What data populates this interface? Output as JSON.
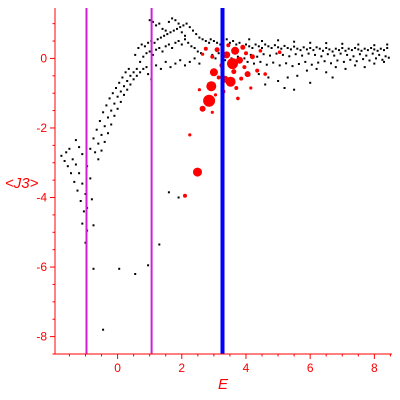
{
  "chart_data": {
    "type": "scatter",
    "title": "",
    "xlabel": "E",
    "ylabel": "<J3>",
    "xlim": [
      -1.95,
      8.55
    ],
    "ylim": [
      -8.5,
      1.45
    ],
    "xticks": [
      0,
      2,
      4,
      6,
      8
    ],
    "yticks": [
      -8,
      -6,
      -4,
      -2,
      0
    ],
    "grid": false,
    "legend": "none",
    "colors": {
      "axes": "#ff0000",
      "band_points": "#000000",
      "highlight_points": "#ff0000",
      "magenta_lines": "#d21ed2",
      "blue_line": "#0000ff"
    },
    "vertical_lines": [
      {
        "x": -0.97,
        "color": "#d21ed2"
      },
      {
        "x": 1.06,
        "color": "#d21ed2"
      },
      {
        "x": 3.27,
        "color": "#0000ff"
      }
    ],
    "highlight_points": [
      {
        "x": 2.49,
        "y": -3.27,
        "size": 4.5
      },
      {
        "x": 2.85,
        "y": -1.22,
        "size": 6
      },
      {
        "x": 2.92,
        "y": -0.8,
        "size": 5
      },
      {
        "x": 3.0,
        "y": -0.4,
        "size": 4
      },
      {
        "x": 2.65,
        "y": -1.45,
        "size": 3
      },
      {
        "x": 3.35,
        "y": -0.6,
        "size": 3.5
      },
      {
        "x": 3.52,
        "y": -0.67,
        "size": 5
      },
      {
        "x": 3.58,
        "y": -0.15,
        "size": 5.5
      },
      {
        "x": 3.66,
        "y": 0.22,
        "size": 4
      },
      {
        "x": 3.4,
        "y": 0.1,
        "size": 3.5
      },
      {
        "x": 3.8,
        "y": -0.05,
        "size": 3.5
      },
      {
        "x": 4.05,
        "y": -0.45,
        "size": 3
      },
      {
        "x": 3.25,
        "y": -0.2,
        "size": 2.5
      },
      {
        "x": 3.1,
        "y": 0.25,
        "size": 2.5
      },
      {
        "x": 4.2,
        "y": 0.05,
        "size": 2.5
      },
      {
        "x": 3.9,
        "y": 0.32,
        "size": 2.5
      },
      {
        "x": 3.95,
        "y": -0.25,
        "size": 2
      },
      {
        "x": 4.35,
        "y": -0.35,
        "size": 2
      },
      {
        "x": 4.6,
        "y": -0.45,
        "size": 1.8
      },
      {
        "x": 3.7,
        "y": -0.85,
        "size": 2
      },
      {
        "x": 3.75,
        "y": -1.15,
        "size": 1.8
      },
      {
        "x": 3.15,
        "y": -0.55,
        "size": 2
      },
      {
        "x": 2.75,
        "y": 0.28,
        "size": 2
      },
      {
        "x": 2.95,
        "y": 0.05,
        "size": 2
      },
      {
        "x": 2.25,
        "y": -2.2,
        "size": 1.6
      },
      {
        "x": 2.1,
        "y": -3.95,
        "size": 2
      },
      {
        "x": 2.95,
        "y": -1.55,
        "size": 1.6
      },
      {
        "x": 3.45,
        "y": 0.38,
        "size": 2
      },
      {
        "x": 4.45,
        "y": 0.22,
        "size": 1.8
      },
      {
        "x": 5.05,
        "y": 0.18,
        "size": 1.8
      },
      {
        "x": 3.3,
        "y": -0.95,
        "size": 2
      },
      {
        "x": 2.55,
        "y": -0.9,
        "size": 1.6
      },
      {
        "x": 3.05,
        "y": -1.05,
        "size": 1.6
      },
      {
        "x": 4.15,
        "y": -0.85,
        "size": 1.6
      },
      {
        "x": 2.65,
        "y": 0.12,
        "size": 1.6
      },
      {
        "x": 3.62,
        "y": -0.38,
        "size": 2.5
      },
      {
        "x": 3.85,
        "y": -0.58,
        "size": 2
      },
      {
        "x": 4.0,
        "y": 0.15,
        "size": 2
      }
    ],
    "band_points": [
      {
        "x": -1.75,
        "y": -2.8
      },
      {
        "x": -1.65,
        "y": -2.95
      },
      {
        "x": -1.55,
        "y": -3.1
      },
      {
        "x": -1.45,
        "y": -3.3
      },
      {
        "x": -1.35,
        "y": -3.55
      },
      {
        "x": -1.25,
        "y": -3.8
      },
      {
        "x": -1.15,
        "y": -4.1
      },
      {
        "x": -1.05,
        "y": -4.4
      },
      {
        "x": -1.6,
        "y": -2.7
      },
      {
        "x": -1.5,
        "y": -2.6
      },
      {
        "x": -1.4,
        "y": -2.9
      },
      {
        "x": -1.3,
        "y": -3.05
      },
      {
        "x": -1.2,
        "y": -3.3
      },
      {
        "x": -1.1,
        "y": -3.6
      },
      {
        "x": -1.0,
        "y": -3.9
      },
      {
        "x": -0.95,
        "y": -4.3
      },
      {
        "x": -1.3,
        "y": -2.35
      },
      {
        "x": -1.2,
        "y": -2.55
      },
      {
        "x": -1.1,
        "y": -2.75
      },
      {
        "x": -0.95,
        "y": -3.1
      },
      {
        "x": -0.85,
        "y": -3.45
      },
      {
        "x": -0.8,
        "y": -4.05
      },
      {
        "x": -0.75,
        "y": -4.8
      },
      {
        "x": -0.95,
        "y": -4.95
      },
      {
        "x": -1.1,
        "y": -4.75
      },
      {
        "x": -0.85,
        "y": -2.6
      },
      {
        "x": -0.75,
        "y": -2.3
      },
      {
        "x": -0.65,
        "y": -2.05
      },
      {
        "x": -0.55,
        "y": -1.8
      },
      {
        "x": -0.45,
        "y": -1.55
      },
      {
        "x": -0.35,
        "y": -1.35
      },
      {
        "x": -0.25,
        "y": -1.15
      },
      {
        "x": -0.15,
        "y": -1.0
      },
      {
        "x": -0.05,
        "y": -0.85
      },
      {
        "x": 0.05,
        "y": -0.7
      },
      {
        "x": 0.15,
        "y": -0.55
      },
      {
        "x": 0.25,
        "y": -0.4
      },
      {
        "x": 0.35,
        "y": -0.3
      },
      {
        "x": -0.7,
        "y": -2.7
      },
      {
        "x": -0.6,
        "y": -2.45
      },
      {
        "x": -0.5,
        "y": -2.2
      },
      {
        "x": -0.4,
        "y": -1.95
      },
      {
        "x": -0.3,
        "y": -1.7
      },
      {
        "x": -0.2,
        "y": -1.5
      },
      {
        "x": -0.1,
        "y": -1.3
      },
      {
        "x": 0.0,
        "y": -1.1
      },
      {
        "x": 0.1,
        "y": -0.95
      },
      {
        "x": 0.2,
        "y": -0.8
      },
      {
        "x": 0.3,
        "y": -0.65
      },
      {
        "x": 0.4,
        "y": -0.5
      },
      {
        "x": 0.5,
        "y": -0.4
      },
      {
        "x": 0.6,
        "y": -0.3
      },
      {
        "x": -0.6,
        "y": -2.9
      },
      {
        "x": -0.5,
        "y": -2.65
      },
      {
        "x": -0.4,
        "y": -2.4
      },
      {
        "x": -0.3,
        "y": -2.15
      },
      {
        "x": -0.2,
        "y": -1.9
      },
      {
        "x": -0.1,
        "y": -1.65
      },
      {
        "x": 0.0,
        "y": -1.45
      },
      {
        "x": 0.1,
        "y": -1.25
      },
      {
        "x": 0.2,
        "y": -1.05
      },
      {
        "x": 0.3,
        "y": -0.9
      },
      {
        "x": 0.4,
        "y": -0.75
      },
      {
        "x": 0.5,
        "y": -0.6
      },
      {
        "x": 0.6,
        "y": -0.5
      },
      {
        "x": 0.7,
        "y": -0.4
      },
      {
        "x": 0.8,
        "y": -0.3
      },
      {
        "x": 0.9,
        "y": -0.25
      },
      {
        "x": 0.55,
        "y": 0.1
      },
      {
        "x": 0.65,
        "y": 0.3
      },
      {
        "x": 0.75,
        "y": 0.4
      },
      {
        "x": 0.85,
        "y": 0.35
      },
      {
        "x": 0.95,
        "y": 0.45
      },
      {
        "x": 1.05,
        "y": 0.5
      },
      {
        "x": 1.15,
        "y": 0.45
      },
      {
        "x": 1.25,
        "y": 0.55
      },
      {
        "x": 1.35,
        "y": 0.6
      },
      {
        "x": 1.45,
        "y": 0.65
      },
      {
        "x": 1.55,
        "y": 0.7
      },
      {
        "x": 1.65,
        "y": 0.75
      },
      {
        "x": 1.75,
        "y": 0.8
      },
      {
        "x": 1.85,
        "y": 0.85
      },
      {
        "x": 1.95,
        "y": 0.9
      },
      {
        "x": 2.05,
        "y": 0.95
      },
      {
        "x": 2.15,
        "y": 1.0
      },
      {
        "x": 2.25,
        "y": 0.9
      },
      {
        "x": 2.35,
        "y": 0.8
      },
      {
        "x": 2.45,
        "y": 0.7
      },
      {
        "x": 2.55,
        "y": 0.6
      },
      {
        "x": 2.65,
        "y": 0.55
      },
      {
        "x": 2.75,
        "y": 0.5
      },
      {
        "x": 2.85,
        "y": 0.45
      },
      {
        "x": 1.0,
        "y": 1.1
      },
      {
        "x": 1.1,
        "y": 1.05
      },
      {
        "x": 1.2,
        "y": 0.95
      },
      {
        "x": 1.3,
        "y": 1.0
      },
      {
        "x": 1.4,
        "y": 0.85
      },
      {
        "x": 1.5,
        "y": 0.8
      },
      {
        "x": 1.6,
        "y": 1.05
      },
      {
        "x": 1.7,
        "y": 1.15
      },
      {
        "x": 1.8,
        "y": 1.1
      },
      {
        "x": 1.9,
        "y": 1.0
      },
      {
        "x": 2.0,
        "y": 0.75
      },
      {
        "x": 2.1,
        "y": 0.65
      },
      {
        "x": 0.7,
        "y": -0.1
      },
      {
        "x": 0.8,
        "y": 0.05
      },
      {
        "x": 0.9,
        "y": 0.15
      },
      {
        "x": 1.0,
        "y": 0.2
      },
      {
        "x": 1.1,
        "y": 0.1
      },
      {
        "x": 1.2,
        "y": 0.25
      },
      {
        "x": 1.3,
        "y": 0.3
      },
      {
        "x": 1.4,
        "y": 0.2
      },
      {
        "x": 1.5,
        "y": 0.35
      },
      {
        "x": 1.6,
        "y": 0.4
      },
      {
        "x": 1.7,
        "y": 0.3
      },
      {
        "x": 1.8,
        "y": 0.45
      },
      {
        "x": 1.9,
        "y": 0.5
      },
      {
        "x": 2.0,
        "y": 0.4
      },
      {
        "x": 2.1,
        "y": 0.55
      },
      {
        "x": 2.2,
        "y": 0.45
      },
      {
        "x": 2.3,
        "y": 0.35
      },
      {
        "x": 2.4,
        "y": 0.3
      },
      {
        "x": 2.5,
        "y": 0.2
      },
      {
        "x": 2.6,
        "y": 0.15
      },
      {
        "x": 1.2,
        "y": -0.2
      },
      {
        "x": 1.35,
        "y": -0.3
      },
      {
        "x": 1.5,
        "y": -0.1
      },
      {
        "x": 1.65,
        "y": -0.25
      },
      {
        "x": 1.8,
        "y": -0.15
      },
      {
        "x": 1.95,
        "y": -0.05
      },
      {
        "x": 2.1,
        "y": -0.2
      },
      {
        "x": 2.25,
        "y": -0.1
      },
      {
        "x": 2.4,
        "y": 0.0
      },
      {
        "x": 2.55,
        "y": -0.15
      },
      {
        "x": 0.95,
        "y": -0.45
      },
      {
        "x": 1.05,
        "y": -0.6
      },
      {
        "x": 2.9,
        "y": 0.55
      },
      {
        "x": 3.0,
        "y": 0.5
      },
      {
        "x": 3.1,
        "y": 0.45
      },
      {
        "x": 3.2,
        "y": 0.4
      },
      {
        "x": 3.3,
        "y": 0.5
      },
      {
        "x": 3.4,
        "y": 0.55
      },
      {
        "x": 3.5,
        "y": 0.45
      },
      {
        "x": 3.6,
        "y": 0.5
      },
      {
        "x": 3.7,
        "y": 0.4
      },
      {
        "x": 3.8,
        "y": 0.45
      },
      {
        "x": 3.9,
        "y": 0.35
      },
      {
        "x": 4.0,
        "y": 0.4
      },
      {
        "x": 2.95,
        "y": 0.1
      },
      {
        "x": 3.05,
        "y": 0.0
      },
      {
        "x": 3.15,
        "y": 0.15
      },
      {
        "x": 3.25,
        "y": 0.05
      },
      {
        "x": 3.35,
        "y": -0.05
      },
      {
        "x": 3.45,
        "y": 0.1
      },
      {
        "x": 3.55,
        "y": 0.0
      },
      {
        "x": 3.65,
        "y": -0.1
      },
      {
        "x": 3.75,
        "y": 0.05
      },
      {
        "x": 3.85,
        "y": -0.05
      },
      {
        "x": 3.95,
        "y": 0.0
      },
      {
        "x": 4.05,
        "y": -0.1
      },
      {
        "x": 4.1,
        "y": 0.35
      },
      {
        "x": 4.2,
        "y": 0.3
      },
      {
        "x": 4.3,
        "y": 0.4
      },
      {
        "x": 4.4,
        "y": 0.35
      },
      {
        "x": 4.5,
        "y": 0.3
      },
      {
        "x": 4.6,
        "y": 0.4
      },
      {
        "x": 4.7,
        "y": 0.35
      },
      {
        "x": 4.8,
        "y": 0.3
      },
      {
        "x": 4.9,
        "y": 0.38
      },
      {
        "x": 5.0,
        "y": 0.32
      },
      {
        "x": 5.1,
        "y": 0.28
      },
      {
        "x": 5.2,
        "y": 0.36
      },
      {
        "x": 5.3,
        "y": 0.3
      },
      {
        "x": 5.4,
        "y": 0.26
      },
      {
        "x": 5.5,
        "y": 0.34
      },
      {
        "x": 5.6,
        "y": 0.28
      },
      {
        "x": 5.7,
        "y": 0.24
      },
      {
        "x": 5.8,
        "y": 0.32
      },
      {
        "x": 5.9,
        "y": 0.26
      },
      {
        "x": 6.0,
        "y": 0.3
      },
      {
        "x": 6.1,
        "y": 0.24
      },
      {
        "x": 6.2,
        "y": 0.32
      },
      {
        "x": 6.3,
        "y": 0.28
      },
      {
        "x": 6.4,
        "y": 0.22
      },
      {
        "x": 6.5,
        "y": 0.3
      },
      {
        "x": 6.6,
        "y": 0.26
      },
      {
        "x": 6.7,
        "y": 0.2
      },
      {
        "x": 6.8,
        "y": 0.28
      },
      {
        "x": 6.9,
        "y": 0.24
      },
      {
        "x": 7.0,
        "y": 0.3
      },
      {
        "x": 7.1,
        "y": 0.22
      },
      {
        "x": 7.2,
        "y": 0.28
      },
      {
        "x": 7.3,
        "y": 0.24
      },
      {
        "x": 7.4,
        "y": 0.3
      },
      {
        "x": 7.5,
        "y": 0.26
      },
      {
        "x": 7.6,
        "y": 0.22
      },
      {
        "x": 7.7,
        "y": 0.28
      },
      {
        "x": 7.8,
        "y": 0.24
      },
      {
        "x": 7.9,
        "y": 0.3
      },
      {
        "x": 8.0,
        "y": 0.26
      },
      {
        "x": 8.1,
        "y": 0.22
      },
      {
        "x": 8.2,
        "y": 0.28
      },
      {
        "x": 8.3,
        "y": 0.24
      },
      {
        "x": 8.4,
        "y": 0.3
      },
      {
        "x": 4.15,
        "y": 0.1
      },
      {
        "x": 4.35,
        "y": 0.05
      },
      {
        "x": 4.55,
        "y": 0.12
      },
      {
        "x": 4.75,
        "y": 0.08
      },
      {
        "x": 4.95,
        "y": 0.14
      },
      {
        "x": 5.15,
        "y": 0.1
      },
      {
        "x": 5.35,
        "y": 0.06
      },
      {
        "x": 5.55,
        "y": 0.12
      },
      {
        "x": 5.75,
        "y": 0.08
      },
      {
        "x": 5.95,
        "y": 0.14
      },
      {
        "x": 6.15,
        "y": 0.1
      },
      {
        "x": 6.35,
        "y": 0.06
      },
      {
        "x": 6.55,
        "y": 0.12
      },
      {
        "x": 6.75,
        "y": 0.08
      },
      {
        "x": 6.95,
        "y": 0.14
      },
      {
        "x": 7.15,
        "y": 0.1
      },
      {
        "x": 7.35,
        "y": 0.06
      },
      {
        "x": 7.55,
        "y": 0.12
      },
      {
        "x": 7.75,
        "y": 0.08
      },
      {
        "x": 7.95,
        "y": 0.14
      },
      {
        "x": 8.15,
        "y": 0.1
      },
      {
        "x": 8.35,
        "y": 0.06
      },
      {
        "x": 4.25,
        "y": -0.15
      },
      {
        "x": 4.45,
        "y": -0.1
      },
      {
        "x": 4.65,
        "y": -0.18
      },
      {
        "x": 4.85,
        "y": -0.12
      },
      {
        "x": 5.05,
        "y": -0.2
      },
      {
        "x": 5.25,
        "y": -0.14
      },
      {
        "x": 5.45,
        "y": -0.22
      },
      {
        "x": 5.65,
        "y": -0.16
      },
      {
        "x": 5.85,
        "y": -0.1
      },
      {
        "x": 6.05,
        "y": -0.18
      },
      {
        "x": 6.25,
        "y": -0.12
      },
      {
        "x": 6.45,
        "y": -0.08
      },
      {
        "x": 6.65,
        "y": -0.14
      },
      {
        "x": 6.85,
        "y": -0.06
      },
      {
        "x": 7.05,
        "y": -0.1
      },
      {
        "x": 7.25,
        "y": -0.04
      },
      {
        "x": 7.45,
        "y": -0.08
      },
      {
        "x": 7.65,
        "y": -0.02
      },
      {
        "x": 7.85,
        "y": -0.06
      },
      {
        "x": 8.05,
        "y": 0.0
      },
      {
        "x": 8.25,
        "y": -0.04
      },
      {
        "x": 8.45,
        "y": 0.02
      },
      {
        "x": 4.4,
        "y": -0.45
      },
      {
        "x": 4.7,
        "y": -0.55
      },
      {
        "x": 5.0,
        "y": -0.65
      },
      {
        "x": 5.3,
        "y": -0.55
      },
      {
        "x": 5.6,
        "y": -0.5
      },
      {
        "x": 5.9,
        "y": -0.35
      },
      {
        "x": 6.2,
        "y": -0.3
      },
      {
        "x": 6.5,
        "y": -0.4
      },
      {
        "x": 6.8,
        "y": -0.25
      },
      {
        "x": 7.1,
        "y": -0.3
      },
      {
        "x": 7.4,
        "y": -0.2
      },
      {
        "x": 7.7,
        "y": -0.25
      },
      {
        "x": 8.0,
        "y": -0.15
      },
      {
        "x": 8.3,
        "y": -0.1
      },
      {
        "x": 4.6,
        "y": -0.75
      },
      {
        "x": 5.2,
        "y": -0.85
      },
      {
        "x": 5.5,
        "y": -0.9
      },
      {
        "x": 6.0,
        "y": -0.7
      },
      {
        "x": 6.7,
        "y": -0.55
      },
      {
        "x": 4.1,
        "y": 0.55
      },
      {
        "x": 4.5,
        "y": 0.5
      },
      {
        "x": 5.0,
        "y": 0.52
      },
      {
        "x": 5.5,
        "y": 0.48
      },
      {
        "x": 6.0,
        "y": 0.45
      },
      {
        "x": 6.5,
        "y": 0.44
      },
      {
        "x": 7.0,
        "y": 0.42
      },
      {
        "x": 7.5,
        "y": 0.4
      },
      {
        "x": 8.0,
        "y": 0.38
      },
      {
        "x": 8.4,
        "y": 0.4
      },
      {
        "x": 1.6,
        "y": -3.85
      },
      {
        "x": 1.9,
        "y": -4.0
      },
      {
        "x": 1.3,
        "y": -5.35
      },
      {
        "x": 0.95,
        "y": -5.95
      },
      {
        "x": 0.55,
        "y": -6.2
      },
      {
        "x": 0.05,
        "y": -6.05
      },
      {
        "x": -0.75,
        "y": -6.05
      },
      {
        "x": -0.45,
        "y": -7.8
      },
      {
        "x": -1.0,
        "y": -5.3
      }
    ]
  }
}
